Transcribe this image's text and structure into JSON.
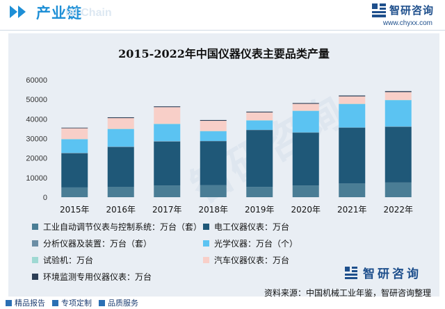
{
  "header": {
    "title": "产业链",
    "watermark": "ial Chain",
    "brand_name": "智研咨询",
    "url": "www.chyxx.com"
  },
  "watermark_text": "智研咨询",
  "brand2_name": "智研咨询",
  "source": "资料来源：中国机械工业年鉴，智研咨询整理",
  "footer": {
    "items": [
      "精品报告",
      "专项定制",
      "品质服务"
    ]
  },
  "colors": {
    "accent": "#1e8fd6",
    "brand": "#1e4f8c",
    "panel": "#e9eef4"
  },
  "chart_data": {
    "type": "bar",
    "stacked": true,
    "title": "2015-2022年中国仪器仪表主要品类产量",
    "categories": [
      "2015年",
      "2016年",
      "2017年",
      "2018年",
      "2019年",
      "2020年",
      "2021年",
      "2022年"
    ],
    "ylim": [
      0,
      60000
    ],
    "yticks": [
      0,
      10000,
      20000,
      30000,
      40000,
      50000,
      60000
    ],
    "grid": false,
    "legend_position": "bottom",
    "series": [
      {
        "name": "工业自动调节仪表与控制系统：万台（套）",
        "color": "#4a7d95",
        "values": [
          5000,
          5200,
          6000,
          6200,
          5300,
          6000,
          7000,
          7500
        ]
      },
      {
        "name": "电工仪器仪表：万台",
        "color": "#1f5878",
        "values": [
          17500,
          20500,
          22500,
          22400,
          29000,
          27000,
          28500,
          28500
        ]
      },
      {
        "name": "分析仪器及装置：万台（套）",
        "color": "#6b8ea5",
        "values": [
          150,
          150,
          150,
          150,
          150,
          150,
          150,
          150
        ]
      },
      {
        "name": "光学仪器：万台（个）",
        "color": "#5bc3f2",
        "values": [
          7000,
          9000,
          8800,
          5000,
          4800,
          11000,
          12000,
          13500
        ]
      },
      {
        "name": "试验机：万台",
        "color": "#9fd9d3",
        "values": [
          100,
          100,
          100,
          100,
          100,
          100,
          100,
          100
        ]
      },
      {
        "name": "汽车仪器仪表：万台",
        "color": "#f8cfc8",
        "values": [
          5500,
          5500,
          8500,
          5200,
          4000,
          3500,
          3800,
          4000
        ]
      },
      {
        "name": "环境监测专用仪器仪表：万台",
        "color": "#2c3e55",
        "values": [
          300,
          400,
          400,
          400,
          400,
          400,
          450,
          500
        ]
      }
    ]
  }
}
